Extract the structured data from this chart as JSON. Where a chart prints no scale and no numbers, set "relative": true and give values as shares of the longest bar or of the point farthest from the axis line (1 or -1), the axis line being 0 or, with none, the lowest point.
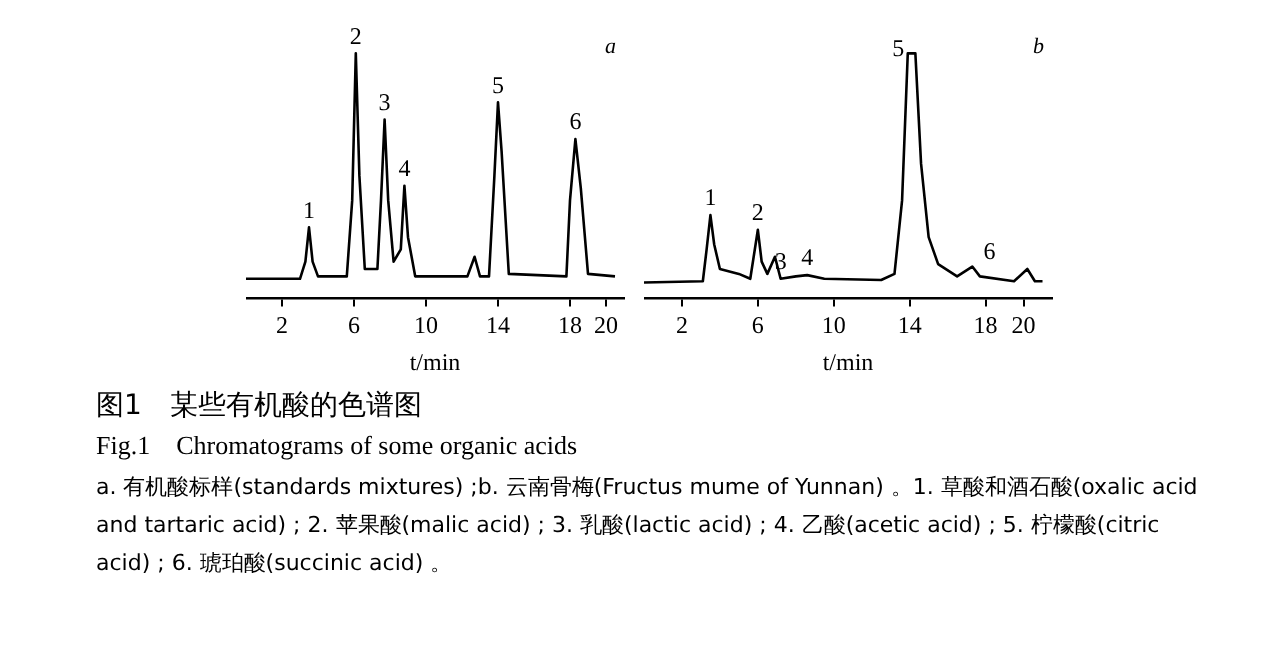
{
  "chart_data": [
    {
      "type": "line",
      "relative": true,
      "title": "图1　某些有机酸的色谱图",
      "subtitle": "Fig.1　Chromatograms of some organic acids",
      "xlabel": "t/min",
      "xlim": [
        0,
        21
      ],
      "xticks": [
        2,
        6,
        10,
        14,
        18,
        20
      ],
      "tick_labels": "x",
      "grid": false,
      "legend": false,
      "marker": "none",
      "line_style": "solid",
      "x": [
        0,
        3.0,
        3.3,
        3.5,
        3.7,
        4.0,
        5.6,
        5.9,
        6.1,
        6.3,
        6.6,
        7.3,
        7.5,
        7.7,
        7.9,
        8.2,
        8.6,
        8.8,
        9.0,
        9.4,
        12.3,
        12.7,
        13.0,
        13.5,
        13.8,
        14.0,
        14.2,
        14.6,
        17.8,
        18.0,
        18.3,
        18.6,
        19.0,
        20.5
      ],
      "series": [
        {
          "color": "#000000",
          "values": [
            0.08,
            0.08,
            0.15,
            0.29,
            0.15,
            0.09,
            0.09,
            0.4,
            1.0,
            0.5,
            0.12,
            0.12,
            0.4,
            0.73,
            0.4,
            0.15,
            0.2,
            0.46,
            0.25,
            0.09,
            0.09,
            0.17,
            0.09,
            0.09,
            0.5,
            0.8,
            0.6,
            0.1,
            0.09,
            0.4,
            0.65,
            0.45,
            0.1,
            0.09
          ]
        }
      ],
      "annotations": [
        "a",
        {
          "text": "1",
          "x": 3.5,
          "y": 0.29
        },
        {
          "text": "2",
          "x": 6.1,
          "y": 1.0
        },
        {
          "text": "3",
          "x": 7.7,
          "y": 0.73
        },
        {
          "text": "4",
          "x": 8.8,
          "y": 0.46
        },
        {
          "text": "5",
          "x": 14.0,
          "y": 0.8
        },
        {
          "text": "6",
          "x": 18.3,
          "y": 0.65
        },
        "a. 有机酸标样(standards mixtures) ;b. 云南骨梅(Fructus mume of Yunnan) 。1. 草酸和酒石酸(oxalic acid and tartaric acid) ; 2. 苹果酸(malic acid) ; 3. 乳酸(lactic acid) ; 4. 乙酸(acetic acid) ; 5. 柠檬酸(citric acid) ; 6. 琥珀酸(succinic acid) 。"
      ]
    },
    {
      "type": "line",
      "relative": true,
      "xlabel": "t/min",
      "xlim": [
        0,
        21.5
      ],
      "xticks": [
        2,
        6,
        10,
        14,
        18,
        20
      ],
      "tick_labels": "x",
      "grid": false,
      "legend": false,
      "marker": "none",
      "line_style": "solid",
      "x": [
        0,
        3.1,
        3.3,
        3.5,
        3.7,
        4.0,
        5.0,
        5.6,
        5.8,
        6.0,
        6.2,
        6.5,
        6.9,
        7.2,
        8.0,
        8.6,
        9.5,
        12.5,
        13.2,
        13.6,
        13.9,
        14.3,
        14.6,
        15.0,
        15.5,
        16.5,
        17.3,
        17.7,
        19.5,
        20.2,
        20.6,
        21
      ],
      "series": [
        {
          "color": "#000000",
          "values": [
            0.065,
            0.07,
            0.2,
            0.34,
            0.22,
            0.12,
            0.1,
            0.08,
            0.18,
            0.28,
            0.15,
            0.1,
            0.17,
            0.08,
            0.09,
            0.095,
            0.08,
            0.075,
            0.1,
            0.4,
            1.0,
            1.0,
            0.55,
            0.25,
            0.14,
            0.09,
            0.13,
            0.09,
            0.07,
            0.12,
            0.07,
            0.07
          ]
        }
      ],
      "annotations": [
        "b",
        {
          "text": "1",
          "x": 3.5,
          "y": 0.34
        },
        {
          "text": "2",
          "x": 6.0,
          "y": 0.28
        },
        {
          "text": "3",
          "x": 7.2,
          "y": 0.08
        },
        {
          "text": "4",
          "x": 8.6,
          "y": 0.095
        },
        {
          "text": "5",
          "x": 13.4,
          "y": 0.95
        },
        {
          "text": "6",
          "x": 18.2,
          "y": 0.12
        }
      ]
    }
  ]
}
